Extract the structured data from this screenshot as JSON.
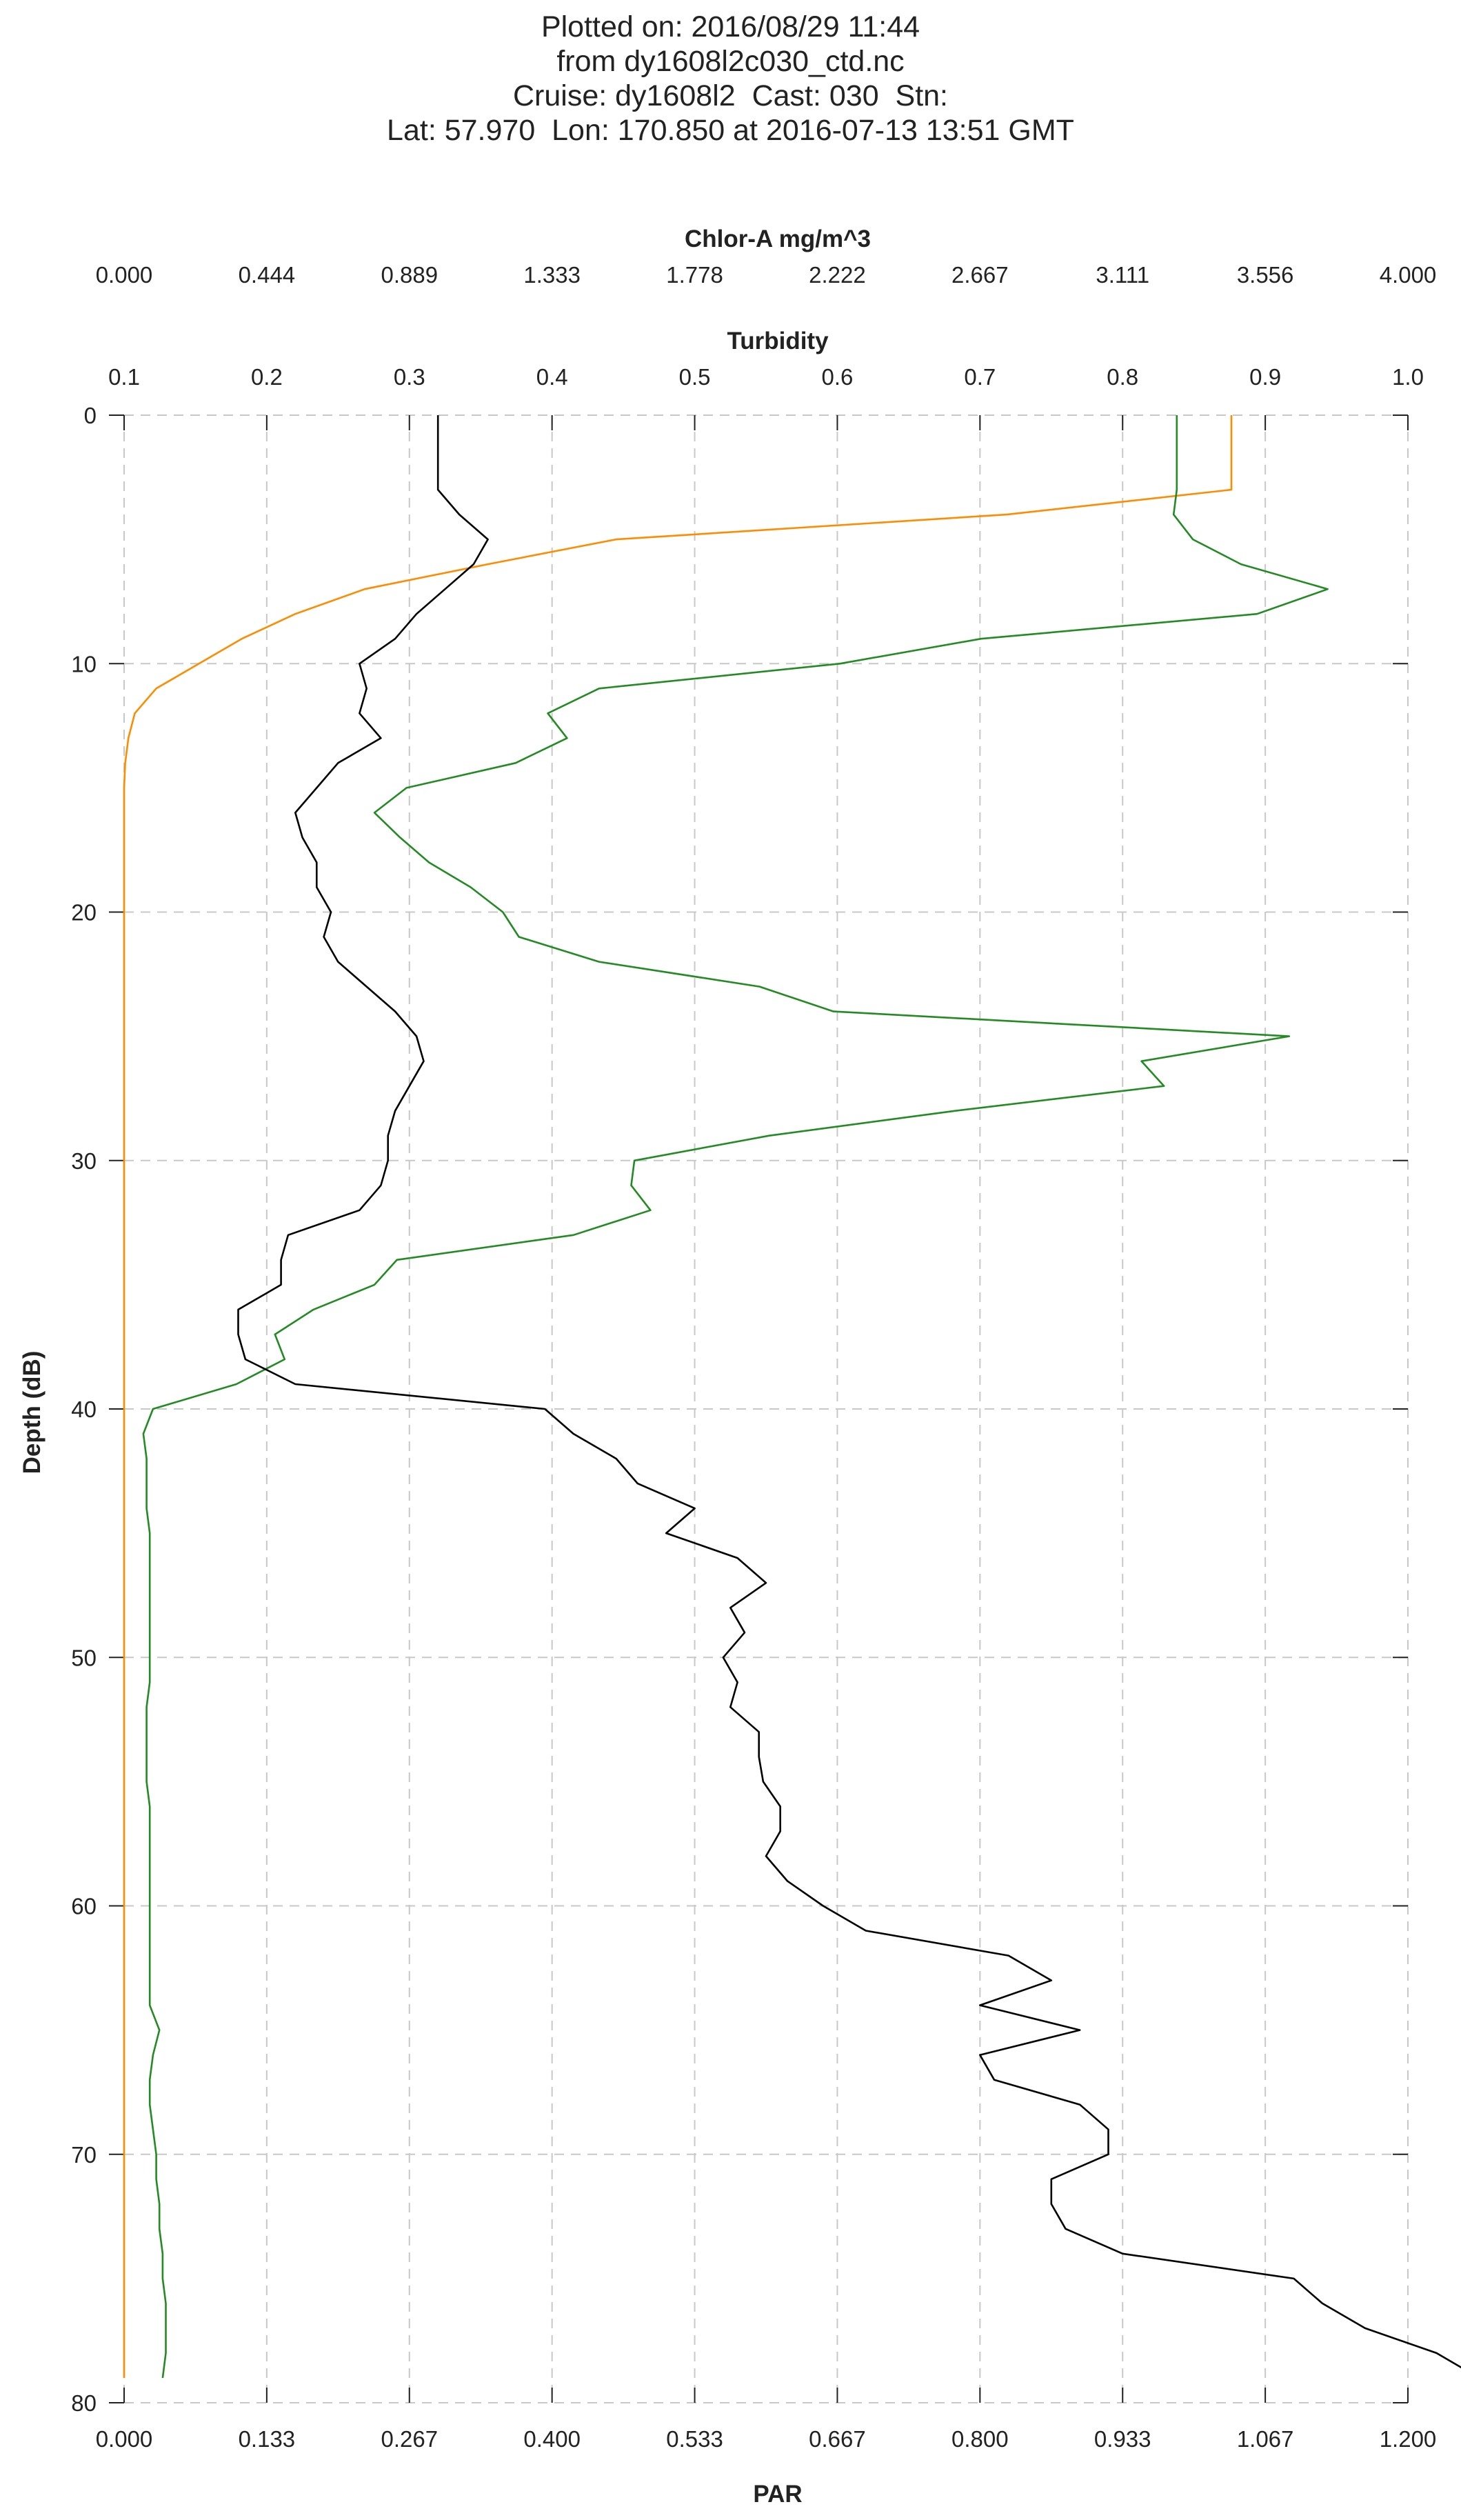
{
  "header": {
    "lines": [
      "Plotted on: 2016/08/29 11:44",
      "from dy1608l2c030_ctd.nc",
      "Cruise: dy1608l2  Cast: 030  Stn:",
      "Lat: 57.970  Lon: 170.850 at 2016-07-13 13:51 GMT"
    ]
  },
  "chart_data": {
    "type": "line",
    "grid": true,
    "y_axis": {
      "label": "Depth (dB)",
      "range": [
        0,
        80
      ],
      "inverted": true,
      "ticks": [
        "0",
        "10",
        "20",
        "30",
        "40",
        "50",
        "60",
        "70",
        "80"
      ]
    },
    "x_axes": {
      "chlor": {
        "label": "Chlor-A mg/m^3",
        "position": "top",
        "range": [
          0,
          4
        ],
        "ticks": [
          "0.000",
          "0.444",
          "0.889",
          "1.333",
          "1.778",
          "2.222",
          "2.667",
          "3.111",
          "3.556",
          "4.000"
        ]
      },
      "turb": {
        "label": "Turbidity",
        "position": "top",
        "range": [
          0.1,
          1.0
        ],
        "ticks": [
          "0.1",
          "0.2",
          "0.3",
          "0.4",
          "0.5",
          "0.6",
          "0.7",
          "0.8",
          "0.9",
          "1.0"
        ]
      },
      "par": {
        "label": "PAR",
        "position": "bottom",
        "range": [
          0,
          1.2
        ],
        "ticks": [
          "0.000",
          "0.133",
          "0.267",
          "0.400",
          "0.533",
          "0.667",
          "0.800",
          "0.933",
          "1.067",
          "1.200"
        ]
      }
    },
    "series": [
      {
        "axis": "par",
        "color": "#ff8c00",
        "depth": [
          0,
          1,
          2,
          3,
          4,
          5,
          6,
          7,
          8,
          9,
          10,
          11,
          12,
          13,
          14,
          15,
          20,
          30,
          40,
          50,
          60,
          70,
          79
        ],
        "values": [
          1.035,
          1.035,
          1.035,
          1.035,
          0.825,
          0.46,
          0.34,
          0.225,
          0.16,
          0.11,
          0.07,
          0.03,
          0.01,
          0.004,
          0.001,
          0.0,
          0.0,
          0.0,
          0.0,
          0.0,
          0.0,
          0.0,
          0.0
        ]
      },
      {
        "axis": "chlor",
        "color": "#228b22",
        "depth": [
          0,
          1,
          2,
          3,
          4,
          5,
          6,
          7,
          8,
          9,
          10,
          11,
          12,
          13,
          14,
          15,
          16,
          17,
          18,
          19,
          20,
          21,
          22,
          23,
          24,
          25,
          26,
          27,
          28,
          29,
          30,
          31,
          32,
          33,
          34,
          35,
          36,
          37,
          38,
          39,
          40,
          41,
          42,
          43,
          44,
          45,
          46,
          47,
          48,
          49,
          50,
          51,
          52,
          53,
          54,
          55,
          56,
          57,
          58,
          59,
          60,
          61,
          62,
          63,
          64,
          65,
          66,
          67,
          68,
          69,
          70,
          71,
          72,
          73,
          74,
          75,
          76,
          77,
          78,
          79
        ],
        "values": [
          3.28,
          3.28,
          3.28,
          3.28,
          3.27,
          3.33,
          3.48,
          3.75,
          3.53,
          2.67,
          2.23,
          1.48,
          1.32,
          1.38,
          1.22,
          0.88,
          0.78,
          0.86,
          0.95,
          1.08,
          1.18,
          1.23,
          1.48,
          1.98,
          2.21,
          3.63,
          3.17,
          3.24,
          2.59,
          2.01,
          1.59,
          1.58,
          1.64,
          1.4,
          0.85,
          0.78,
          0.59,
          0.47,
          0.5,
          0.35,
          0.09,
          0.06,
          0.07,
          0.07,
          0.07,
          0.08,
          0.08,
          0.08,
          0.08,
          0.08,
          0.08,
          0.08,
          0.07,
          0.07,
          0.07,
          0.07,
          0.08,
          0.08,
          0.08,
          0.08,
          0.08,
          0.08,
          0.08,
          0.08,
          0.08,
          0.11,
          0.09,
          0.08,
          0.08,
          0.09,
          0.1,
          0.1,
          0.11,
          0.11,
          0.12,
          0.12,
          0.13,
          0.13,
          0.13,
          0.12
        ]
      },
      {
        "axis": "turb",
        "color": "#000000",
        "depth": [
          0,
          1,
          2,
          3,
          4,
          5,
          6,
          7,
          8,
          9,
          10,
          11,
          12,
          13,
          14,
          15,
          16,
          17,
          18,
          19,
          20,
          21,
          22,
          23,
          24,
          25,
          26,
          27,
          28,
          29,
          30,
          31,
          32,
          33,
          34,
          35,
          36,
          37,
          38,
          39,
          40,
          41,
          42,
          43,
          44,
          45,
          46,
          47,
          48,
          49,
          50,
          51,
          52,
          53,
          54,
          55,
          56,
          57,
          58,
          59,
          60,
          61,
          62,
          63,
          64,
          65,
          66,
          67,
          68,
          69,
          70,
          71,
          72,
          73,
          74,
          75,
          76,
          77,
          78,
          79
        ],
        "values": [
          0.32,
          0.32,
          0.32,
          0.32,
          0.335,
          0.355,
          0.345,
          0.325,
          0.305,
          0.29,
          0.265,
          0.27,
          0.265,
          0.28,
          0.25,
          0.235,
          0.22,
          0.225,
          0.235,
          0.235,
          0.245,
          0.24,
          0.25,
          0.27,
          0.29,
          0.305,
          0.31,
          0.3,
          0.29,
          0.285,
          0.285,
          0.28,
          0.265,
          0.215,
          0.21,
          0.21,
          0.18,
          0.18,
          0.185,
          0.22,
          0.395,
          0.415,
          0.445,
          0.46,
          0.5,
          0.48,
          0.53,
          0.55,
          0.525,
          0.535,
          0.52,
          0.53,
          0.525,
          0.545,
          0.545,
          0.548,
          0.56,
          0.56,
          0.55,
          0.565,
          0.59,
          0.62,
          0.72,
          0.75,
          0.7,
          0.77,
          0.7,
          0.71,
          0.77,
          0.79,
          0.79,
          0.75,
          0.75,
          0.76,
          0.8,
          0.92,
          0.94,
          0.97,
          1.02,
          1.05
        ]
      }
    ]
  }
}
